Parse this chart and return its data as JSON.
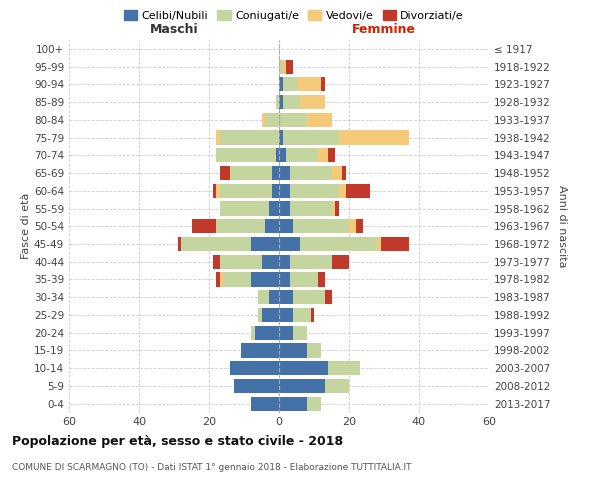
{
  "age_groups": [
    "0-4",
    "5-9",
    "10-14",
    "15-19",
    "20-24",
    "25-29",
    "30-34",
    "35-39",
    "40-44",
    "45-49",
    "50-54",
    "55-59",
    "60-64",
    "65-69",
    "70-74",
    "75-79",
    "80-84",
    "85-89",
    "90-94",
    "95-99",
    "100+"
  ],
  "birth_years": [
    "2013-2017",
    "2008-2012",
    "2003-2007",
    "1998-2002",
    "1993-1997",
    "1988-1992",
    "1983-1987",
    "1978-1982",
    "1973-1977",
    "1968-1972",
    "1963-1967",
    "1958-1962",
    "1953-1957",
    "1948-1952",
    "1943-1947",
    "1938-1942",
    "1933-1937",
    "1928-1932",
    "1923-1927",
    "1918-1922",
    "≤ 1917"
  ],
  "male": {
    "celibi": [
      8,
      13,
      14,
      11,
      7,
      5,
      3,
      8,
      5,
      8,
      4,
      3,
      2,
      2,
      1,
      0,
      0,
      0,
      0,
      0,
      0
    ],
    "coniugati": [
      0,
      0,
      0,
      0,
      1,
      1,
      3,
      8,
      12,
      20,
      14,
      14,
      15,
      12,
      17,
      17,
      4,
      1,
      0,
      0,
      0
    ],
    "vedovi": [
      0,
      0,
      0,
      0,
      0,
      0,
      0,
      1,
      0,
      0,
      0,
      0,
      1,
      0,
      0,
      1,
      1,
      0,
      0,
      0,
      0
    ],
    "divorziati": [
      0,
      0,
      0,
      0,
      0,
      0,
      0,
      1,
      2,
      1,
      7,
      0,
      1,
      3,
      0,
      0,
      0,
      0,
      0,
      0,
      0
    ]
  },
  "female": {
    "nubili": [
      8,
      13,
      14,
      8,
      4,
      4,
      4,
      3,
      3,
      6,
      4,
      3,
      3,
      3,
      2,
      1,
      0,
      1,
      1,
      0,
      0
    ],
    "coniugate": [
      4,
      7,
      9,
      4,
      4,
      5,
      9,
      8,
      12,
      22,
      16,
      12,
      14,
      12,
      9,
      16,
      8,
      5,
      4,
      1,
      0
    ],
    "vedove": [
      0,
      0,
      0,
      0,
      0,
      0,
      0,
      0,
      0,
      1,
      2,
      1,
      2,
      3,
      3,
      20,
      7,
      7,
      7,
      1,
      0
    ],
    "divorziate": [
      0,
      0,
      0,
      0,
      0,
      1,
      2,
      2,
      5,
      8,
      2,
      1,
      7,
      1,
      2,
      0,
      0,
      0,
      1,
      2,
      0
    ]
  },
  "colors": {
    "celibi": "#4472a8",
    "coniugati": "#c5d5a0",
    "vedovi": "#f5c97a",
    "divorziati": "#c0392b"
  },
  "xlim": 60,
  "title": "Popolazione per età, sesso e stato civile - 2018",
  "subtitle": "COMUNE DI SCARMAGNO (TO) - Dati ISTAT 1° gennaio 2018 - Elaborazione TUTTITALIA.IT",
  "ylabel_left": "Fasce di età",
  "ylabel_right": "Anni di nascita",
  "xlabel_left": "Maschi",
  "xlabel_right": "Femmine",
  "background_color": "#ffffff",
  "grid_color": "#cccccc"
}
